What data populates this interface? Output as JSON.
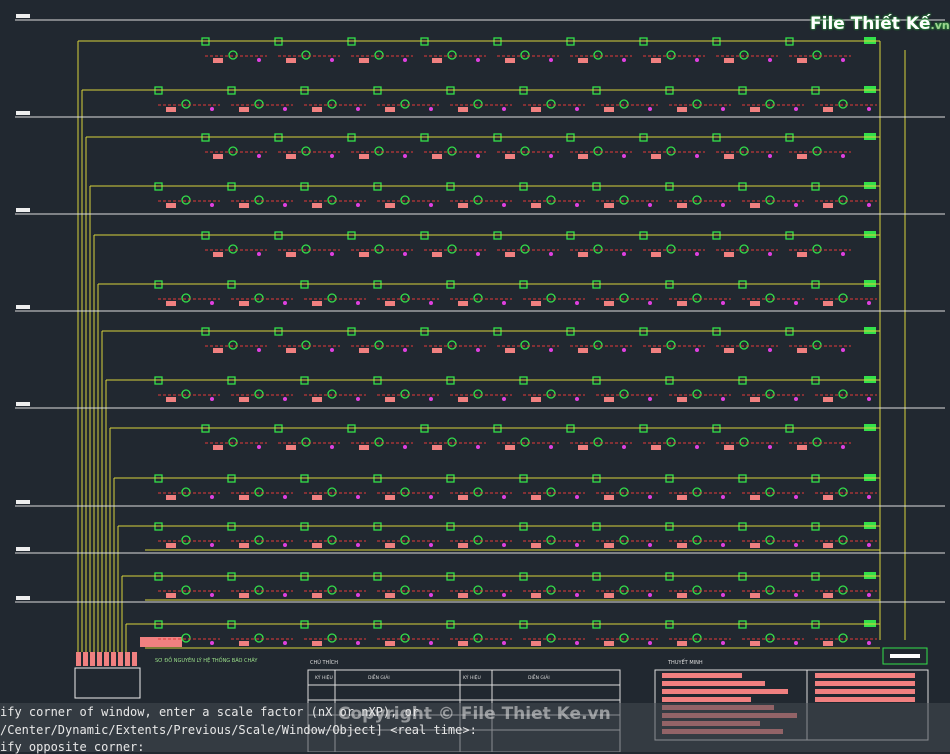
{
  "logo": {
    "brand": "File Thiết Kế",
    "suffix": ".vn"
  },
  "watermark": "Copyright © File Thiet Ke.vn",
  "legend": {
    "title": "CHÚ THÍCH",
    "headers": [
      "KÝ HIỆU",
      "DIỄN GIẢI",
      "KÝ HIỆU",
      "DIỄN GIẢI"
    ]
  },
  "notes_title": "THUYẾT MINH",
  "diagram_title": "SƠ ĐỒ NGUYÊN LÝ HỆ THỐNG BÁO CHÁY",
  "command_line": [
    "ify corner of window, enter a scale factor (nX or nXP), or",
    "/Center/Dynamic/Extents/Previous/Scale/Window/Object] <real time>:",
    "ify opposite corner:"
  ]
}
